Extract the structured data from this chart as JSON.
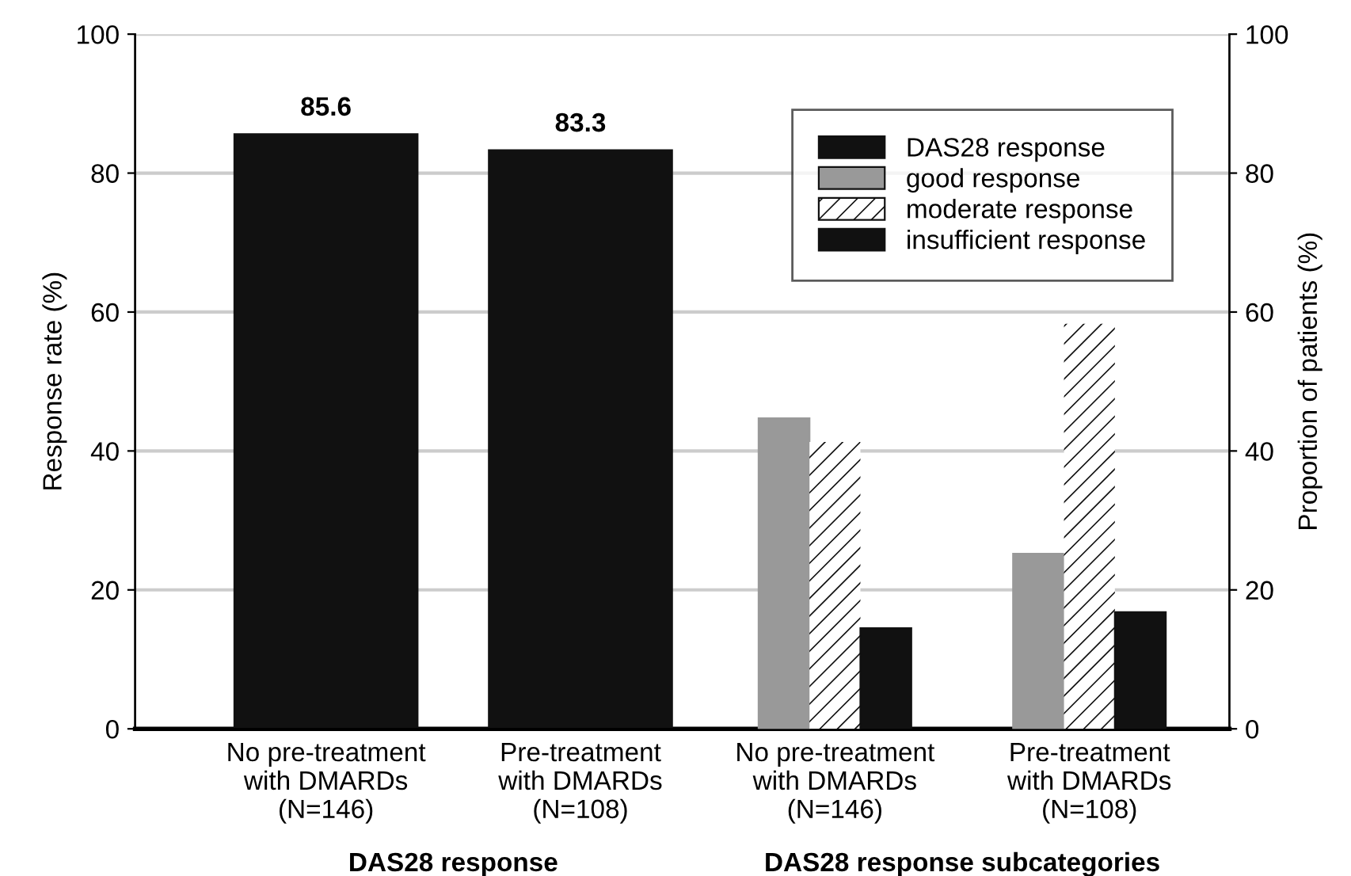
{
  "chart_data": {
    "type": "bar",
    "categories": [
      "No pre-treatment\nwith DMARDs\n(N=146)",
      "Pre-treatment\nwith DMARDs\n(N=108)",
      "No pre-treatment\nwith DMARDs\n(N=146)",
      "Pre-treatment\nwith DMARDs\n(N=108)"
    ],
    "series": [
      {
        "name": "DAS28 response",
        "color": "#111111",
        "values": [
          85.6,
          83.3,
          null,
          null
        ],
        "value_labels": [
          "85.6",
          "83.3",
          null,
          null
        ]
      },
      {
        "name": "good response",
        "color": "#999999",
        "axis": "y2",
        "values": [
          null,
          null,
          44.7,
          25.2
        ]
      },
      {
        "name": "moderate response",
        "color": "#ffffff",
        "axis": "y2",
        "values": [
          null,
          null,
          41.3,
          58.3
        ]
      },
      {
        "name": "insufficient response",
        "color": "#111111",
        "axis": "y2",
        "values": [
          null,
          null,
          14.5,
          16.8
        ]
      }
    ],
    "ylabel": "Response rate (%)",
    "y2label": "Proportion of patients (%)",
    "ylim": [
      0,
      100
    ],
    "yticks": [
      0,
      20,
      40,
      60,
      80,
      100
    ],
    "y2lim": [
      0,
      100
    ],
    "y2ticks": [
      0,
      20,
      40,
      60,
      80,
      100
    ],
    "annotations": [
      "DAS28 response",
      "DAS28 response subcategories"
    ],
    "grid": "y",
    "legend": "top right"
  }
}
